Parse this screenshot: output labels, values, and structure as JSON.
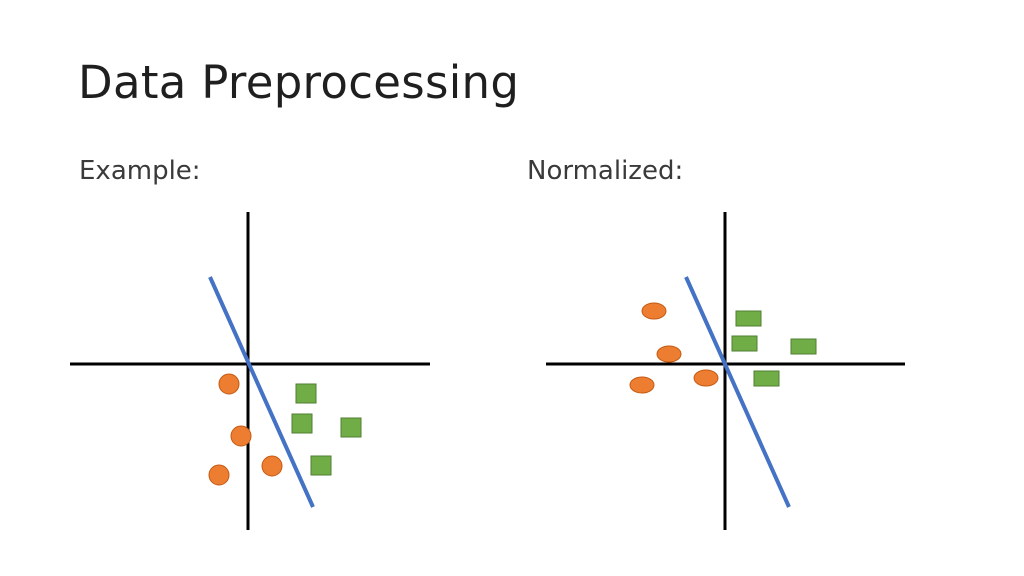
{
  "slide": {
    "title": "Data Preprocessing"
  },
  "panels": [
    {
      "heading": "Example:",
      "axis_color": "#000000",
      "boundary_color": "#4472c4",
      "class_a_color": "#ed7d31",
      "class_b_color": "#70ad47",
      "class_a_shape": "circle",
      "class_b_shape": "square"
    },
    {
      "heading": "Normalized:",
      "axis_color": "#000000",
      "boundary_color": "#4472c4",
      "class_a_color": "#ed7d31",
      "class_b_color": "#70ad47",
      "class_a_shape": "circle",
      "class_b_shape": "square"
    }
  ]
}
